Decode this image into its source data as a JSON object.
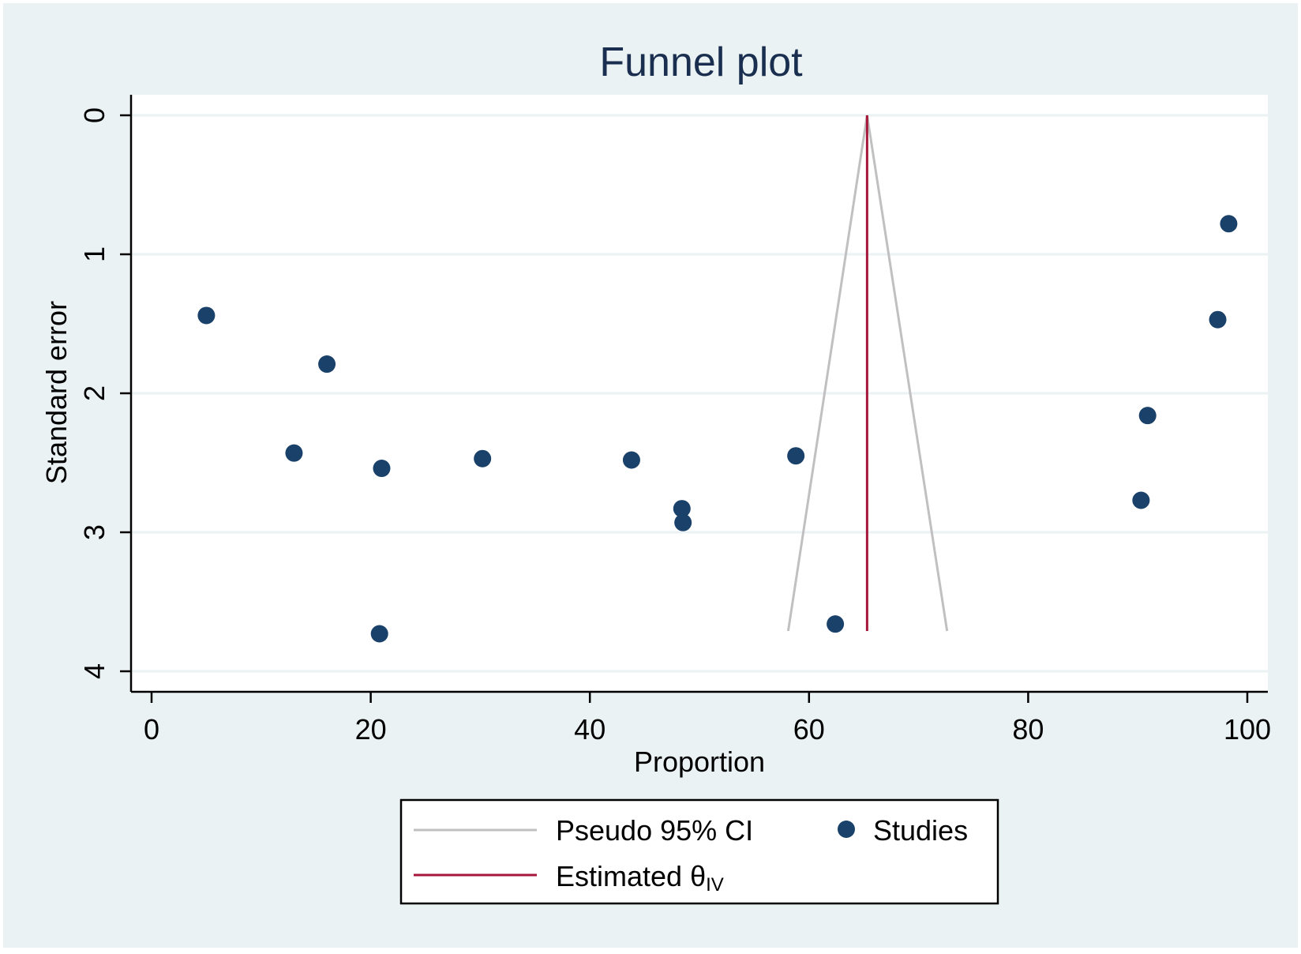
{
  "chart_data": {
    "type": "scatter",
    "title": "Funnel plot",
    "xlabel": "Proportion",
    "ylabel": "Standard error",
    "xlim": [
      0,
      100
    ],
    "ylim": [
      0,
      4
    ],
    "y_inverted": true,
    "x_ticks": [
      "0",
      "20",
      "40",
      "60",
      "80",
      "100"
    ],
    "y_ticks": [
      "0",
      "1",
      "2",
      "3",
      "4"
    ],
    "grid": true,
    "legend_placement": "bottom",
    "series": [
      {
        "name": "Studies",
        "kind": "points",
        "color": "#1a4169",
        "points": [
          {
            "x": 5.0,
            "y": 1.44
          },
          {
            "x": 13.0,
            "y": 2.43
          },
          {
            "x": 16.0,
            "y": 1.79
          },
          {
            "x": 21.0,
            "y": 2.54
          },
          {
            "x": 20.8,
            "y": 3.73
          },
          {
            "x": 30.2,
            "y": 2.47
          },
          {
            "x": 43.8,
            "y": 2.48
          },
          {
            "x": 48.4,
            "y": 2.83
          },
          {
            "x": 48.5,
            "y": 2.93
          },
          {
            "x": 58.8,
            "y": 2.45
          },
          {
            "x": 62.4,
            "y": 3.66
          },
          {
            "x": 90.3,
            "y": 2.77
          },
          {
            "x": 90.9,
            "y": 2.16
          },
          {
            "x": 97.3,
            "y": 1.47
          },
          {
            "x": 98.3,
            "y": 0.78
          }
        ]
      },
      {
        "name": "Pseudo 95% CI",
        "kind": "funnel",
        "color": "#c0c0c0",
        "apex": {
          "x": 65.3,
          "y": 0
        },
        "left_base": {
          "x": 58.1,
          "y": 3.71
        },
        "right_base": {
          "x": 72.6,
          "y": 3.71
        }
      },
      {
        "name": "Estimated θIV",
        "kind": "vline",
        "color": "#a6153a",
        "x": 65.3,
        "y_from": 0,
        "y_to": 3.71
      }
    ],
    "legend": [
      {
        "label": "Pseudo 95% CI",
        "symbol": "line",
        "color": "#c0c0c0"
      },
      {
        "label": "Studies",
        "symbol": "dot",
        "color": "#1a4169"
      },
      {
        "label_main": "Estimated θ",
        "label_sub": "IV",
        "symbol": "line",
        "color": "#a6153a"
      }
    ]
  }
}
